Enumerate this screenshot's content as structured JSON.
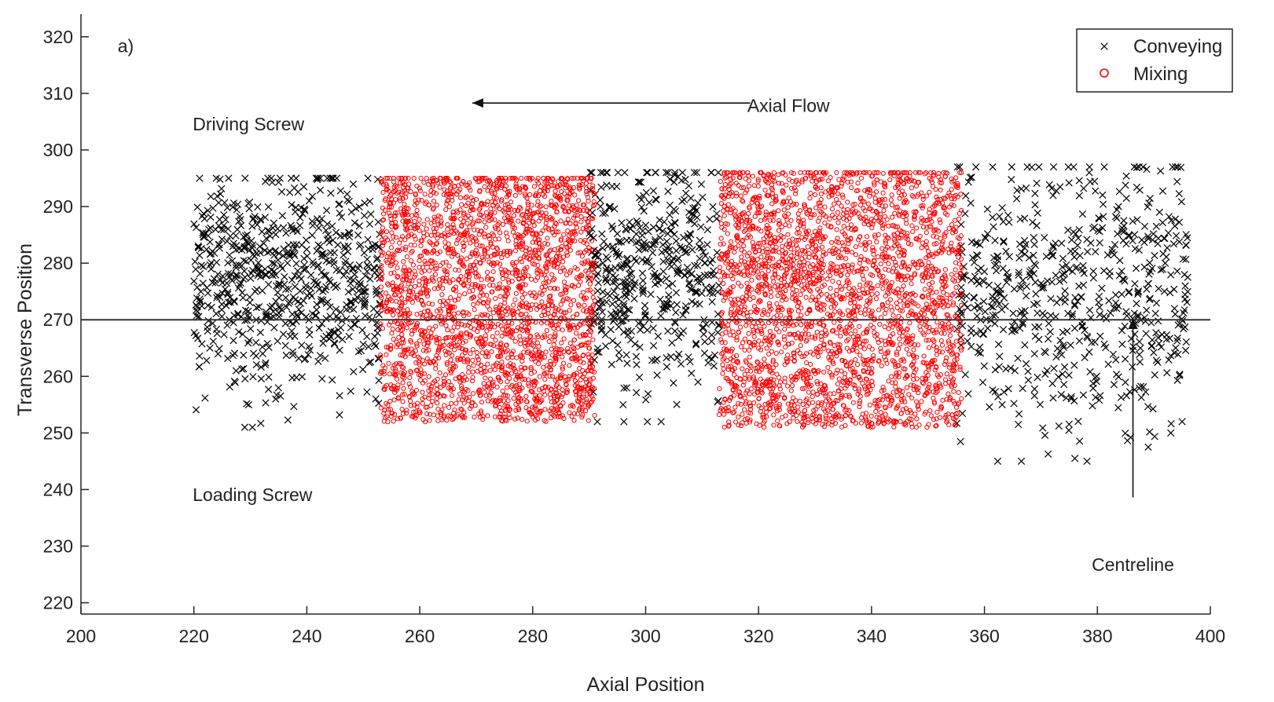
{
  "chart_data": {
    "type": "scatter",
    "panel_label": "a)",
    "xlabel": "Axial Position",
    "ylabel": "Transverse Position",
    "xlim": [
      200,
      400
    ],
    "ylim": [
      218,
      324
    ],
    "xticks": [
      200,
      220,
      240,
      260,
      280,
      300,
      320,
      340,
      360,
      380,
      400
    ],
    "yticks": [
      220,
      230,
      240,
      250,
      260,
      270,
      280,
      290,
      300,
      310,
      320
    ],
    "grid": false,
    "legend_position": "top-right",
    "series": [
      {
        "name": "Conveying",
        "marker": "x",
        "color": "#000000",
        "regions": [
          {
            "x": [
              220,
              253
            ],
            "y": [
              251,
              295
            ],
            "count": 700
          },
          {
            "x": [
              290,
              313
            ],
            "y": [
              252,
              296
            ],
            "count": 480
          },
          {
            "x": [
              355,
              396
            ],
            "y": [
              245,
              297
            ],
            "count": 620
          }
        ],
        "points": [
          [
            229,
            251
          ],
          [
            376,
            245.5
          ],
          [
            389,
            247.5
          ],
          [
            391,
            289
          ],
          [
            392,
            280
          ],
          [
            396,
            277.5
          ],
          [
            395,
            252
          ],
          [
            393,
            250
          ],
          [
            366,
            251.5
          ],
          [
            296,
            255
          ]
        ]
      },
      {
        "name": "Mixing",
        "marker": "o",
        "color": "#ff0000",
        "regions": [
          {
            "x": [
              253,
              291
            ],
            "y": [
              250,
              295
            ],
            "count": 2600
          },
          {
            "x": [
              313,
              356
            ],
            "y": [
              249,
              296
            ],
            "count": 2800
          }
        ]
      }
    ],
    "centreline_y": 270,
    "annotations": {
      "axial_flow": "Axial Flow",
      "driving_screw": "Driving Screw",
      "loading_screw": "Loading Screw",
      "centreline": "Centreline"
    }
  },
  "colors": {
    "conveying": "#000000",
    "mixing": "#ff0000",
    "axes": "#262626"
  }
}
